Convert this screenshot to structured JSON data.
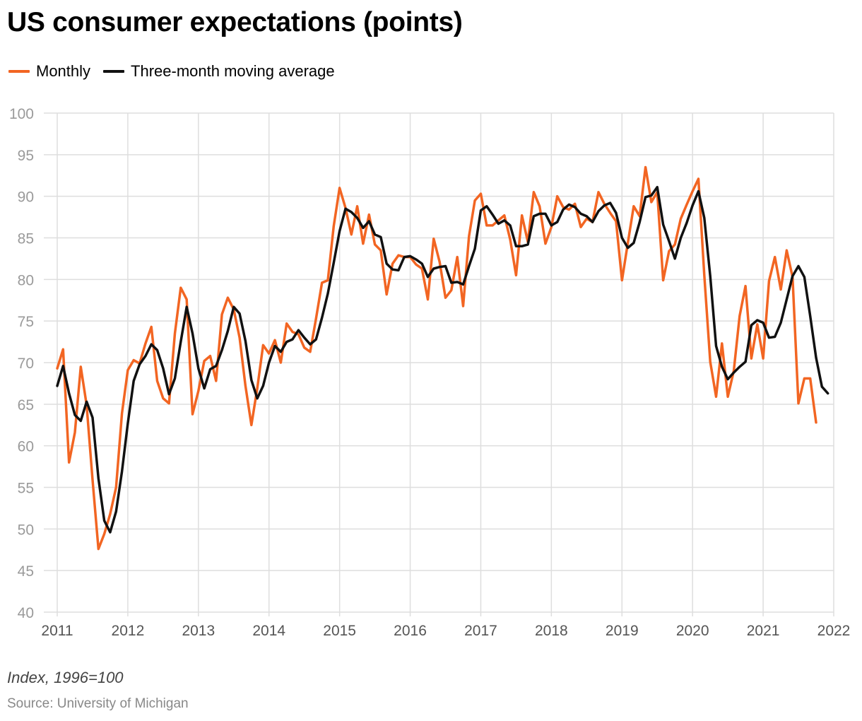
{
  "chart_data": {
    "type": "line",
    "title": "US consumer expectations (points)",
    "note": "Index, 1996=100",
    "source": "Source: University of Michigan",
    "ylim": [
      40,
      100
    ],
    "yticks": [
      40,
      45,
      50,
      55,
      60,
      65,
      70,
      75,
      80,
      85,
      90,
      95,
      100
    ],
    "xlim": [
      2011,
      2022
    ],
    "xticks": [
      2011,
      2012,
      2013,
      2014,
      2015,
      2016,
      2017,
      2018,
      2019,
      2020,
      2021,
      2022
    ],
    "grid": true,
    "legend_position": "top-left",
    "x_start_year": 2011,
    "points_per_year": 12,
    "series": [
      {
        "name": "Monthly",
        "color": "#f26522",
        "values": [
          69.3,
          71.6,
          58.0,
          61.6,
          69.5,
          64.9,
          55.9,
          47.6,
          49.4,
          51.8,
          55.0,
          63.9,
          69.1,
          70.3,
          69.9,
          72.3,
          74.3,
          67.8,
          65.7,
          65.1,
          73.5,
          79.0,
          77.6,
          63.8,
          66.6,
          70.2,
          70.8,
          67.8,
          75.8,
          77.8,
          76.4,
          73.0,
          67.2,
          62.5,
          66.9,
          72.1,
          71.1,
          72.7,
          70.0,
          74.7,
          73.7,
          73.4,
          71.8,
          71.3,
          75.3,
          79.6,
          79.9,
          86.4,
          91.0,
          88.6,
          85.4,
          88.8,
          84.3,
          87.8,
          84.2,
          83.5,
          78.2,
          81.9,
          82.9,
          82.7,
          82.7,
          81.8,
          81.3,
          77.6,
          84.9,
          82.1,
          77.8,
          78.7,
          82.7,
          76.8,
          85.2,
          89.5,
          90.3,
          86.5,
          86.5,
          87.1,
          87.7,
          84.8,
          80.5,
          87.7,
          84.5,
          90.5,
          88.8,
          84.3,
          86.3,
          90.0,
          88.7,
          88.4,
          89.1,
          86.3,
          87.3,
          86.9,
          90.5,
          89.1,
          88.0,
          87.0,
          79.9,
          84.4,
          88.8,
          87.6,
          93.5,
          89.3,
          90.5,
          79.9,
          83.4,
          84.2,
          87.3,
          89.0,
          90.6,
          92.1,
          80.5,
          70.1,
          65.9,
          72.3,
          65.9,
          69.0,
          75.6,
          79.2,
          70.5,
          74.6,
          70.5,
          79.8,
          82.7,
          78.8,
          83.5,
          80.3,
          65.1,
          68.1,
          68.1,
          62.8
        ]
      },
      {
        "name": "Three-month moving average",
        "color": "#111111",
        "values": [
          67.2,
          69.6,
          66.3,
          63.7,
          63.0,
          65.3,
          63.4,
          56.1,
          51.0,
          49.6,
          52.1,
          56.9,
          62.7,
          67.8,
          69.8,
          70.8,
          72.2,
          71.5,
          69.3,
          66.2,
          68.1,
          72.5,
          76.7,
          73.5,
          69.3,
          66.9,
          69.2,
          69.6,
          71.5,
          73.8,
          76.7,
          75.9,
          72.6,
          67.9,
          65.7,
          67.2,
          70.0,
          72.0,
          71.3,
          72.5,
          72.8,
          73.9,
          73.0,
          72.2,
          72.8,
          75.4,
          78.3,
          82.0,
          85.8,
          88.5,
          88.1,
          87.4,
          86.2,
          87.0,
          85.4,
          85.1,
          81.9,
          81.2,
          81.1,
          82.7,
          82.8,
          82.4,
          81.9,
          80.3,
          81.3,
          81.5,
          81.6,
          79.6,
          79.7,
          79.4,
          81.6,
          83.7,
          88.3,
          88.8,
          87.8,
          86.7,
          87.1,
          86.5,
          84.0,
          84.0,
          84.2,
          87.6,
          87.9,
          87.9,
          86.5,
          86.9,
          88.4,
          89.0,
          88.7,
          87.9,
          87.6,
          86.9,
          88.2,
          88.9,
          89.2,
          88.0,
          85.0,
          83.8,
          84.4,
          86.9,
          89.9,
          90.1,
          91.1,
          86.6,
          84.6,
          82.5,
          85.0,
          86.8,
          88.9,
          90.6,
          87.4,
          80.4,
          72.0,
          69.5,
          68.0,
          68.8,
          69.5,
          70.1,
          74.5,
          75.1,
          74.8,
          73.0,
          73.1,
          74.8,
          77.6,
          80.4,
          81.6,
          80.3,
          75.6,
          70.6,
          67.1,
          66.3
        ]
      }
    ]
  }
}
